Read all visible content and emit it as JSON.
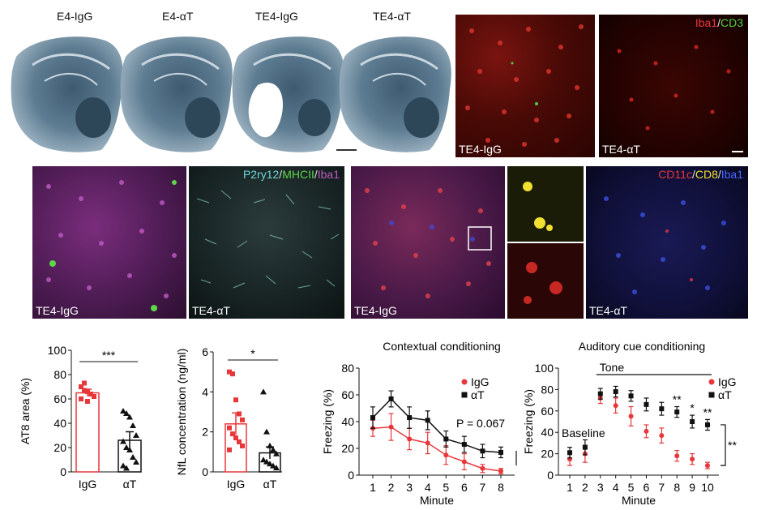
{
  "row1": {
    "brain_labels": [
      "E4-IgG",
      "E4-αT",
      "TE4-IgG",
      "TE4-αT"
    ],
    "iba_cd3": {
      "legend": {
        "a": "Iba1",
        "sep": "/",
        "b": "CD3"
      },
      "tags": [
        "TE4-IgG",
        "TE4-αT"
      ]
    }
  },
  "row2": {
    "p2ry12": {
      "legend": {
        "a": "P2ry12",
        "sep1": "/",
        "b": "MHCII",
        "sep2": "/",
        "c": "Iba1"
      },
      "tags": [
        "TE4-IgG",
        "TE4-αT"
      ]
    },
    "cd11c": {
      "legend": {
        "a": "CD11c",
        "sep1": "/",
        "b": "CD8",
        "sep2": "/",
        "c": "Iba1"
      },
      "tags": [
        "TE4-IgG",
        "TE4-αT"
      ]
    }
  },
  "colors": {
    "igg": "#e8373b",
    "at": "#111111"
  },
  "chart_data": [
    {
      "type": "bar",
      "ylabel": "AT8 area (%)",
      "categories": [
        "IgG",
        "αT"
      ],
      "values": [
        65,
        26
      ],
      "errors": [
        3,
        7
      ],
      "ylim": [
        0,
        100
      ],
      "yticks": [
        "0",
        "20",
        "40",
        "60",
        "80",
        "100"
      ],
      "significance": "***",
      "points": {
        "IgG": [
          70,
          67,
          66,
          64,
          62,
          60,
          73,
          58
        ],
        "αT": [
          50,
          48,
          45,
          38,
          30,
          25,
          20,
          18,
          12,
          8,
          5,
          3
        ]
      }
    },
    {
      "type": "bar",
      "ylabel": "NfL concentration (ng/ml)",
      "categories": [
        "IgG",
        "αT"
      ],
      "values": [
        2.4,
        0.95
      ],
      "errors": [
        0.55,
        0.3
      ],
      "ylim": [
        0,
        6
      ],
      "yticks": [
        "0",
        "2",
        "4",
        "6"
      ],
      "significance": "*",
      "points": {
        "IgG": [
          5.0,
          4.9,
          3.6,
          2.9,
          2.6,
          2.2,
          1.9,
          1.7,
          1.5,
          1.3,
          1.1
        ],
        "αT": [
          4.0,
          2.0,
          1.3,
          1.1,
          0.9,
          0.6,
          0.5,
          0.4,
          0.3,
          0.2
        ]
      }
    },
    {
      "type": "line",
      "title": "Contextual conditioning",
      "xlabel": "Minute",
      "ylabel": "Freezing (%)",
      "x": [
        1,
        2,
        3,
        4,
        5,
        6,
        7,
        8
      ],
      "ylim": [
        0,
        80
      ],
      "yticks": [
        "0",
        "20",
        "40",
        "60",
        "80"
      ],
      "annotation": "P = 0.067",
      "series": [
        {
          "name": "IgG",
          "values": [
            35,
            36,
            27,
            24,
            15,
            10,
            5,
            3
          ],
          "errors": [
            6,
            10,
            8,
            8,
            7,
            6,
            3,
            2
          ]
        },
        {
          "name": "αT",
          "values": [
            43,
            57,
            43,
            41,
            27,
            23,
            18,
            17
          ],
          "errors": [
            8,
            6,
            8,
            7,
            6,
            6,
            5,
            4
          ]
        }
      ]
    },
    {
      "type": "line",
      "title": "Auditory cue conditioning",
      "xlabel": "Minute",
      "ylabel": "Freezing (%)",
      "x": [
        1,
        2,
        3,
        4,
        5,
        6,
        7,
        8,
        9,
        10
      ],
      "ylim": [
        0,
        100
      ],
      "yticks": [
        "0",
        "20",
        "40",
        "60",
        "80",
        "100"
      ],
      "tone_label": "Tone",
      "baseline_label": "Baseline",
      "bracket_sig": "**",
      "sig_labels": {
        "8": "**",
        "9": "*",
        "10": "**"
      },
      "series": [
        {
          "name": "IgG",
          "values": [
            15,
            20,
            72,
            65,
            55,
            41,
            37,
            18,
            15,
            9
          ],
          "errors": [
            6,
            8,
            5,
            7,
            9,
            6,
            7,
            5,
            5,
            3
          ]
        },
        {
          "name": "αT",
          "values": [
            21,
            26,
            76,
            78,
            74,
            66,
            62,
            59,
            50,
            47
          ],
          "errors": [
            5,
            7,
            5,
            5,
            5,
            6,
            6,
            5,
            6,
            5
          ]
        }
      ]
    }
  ]
}
